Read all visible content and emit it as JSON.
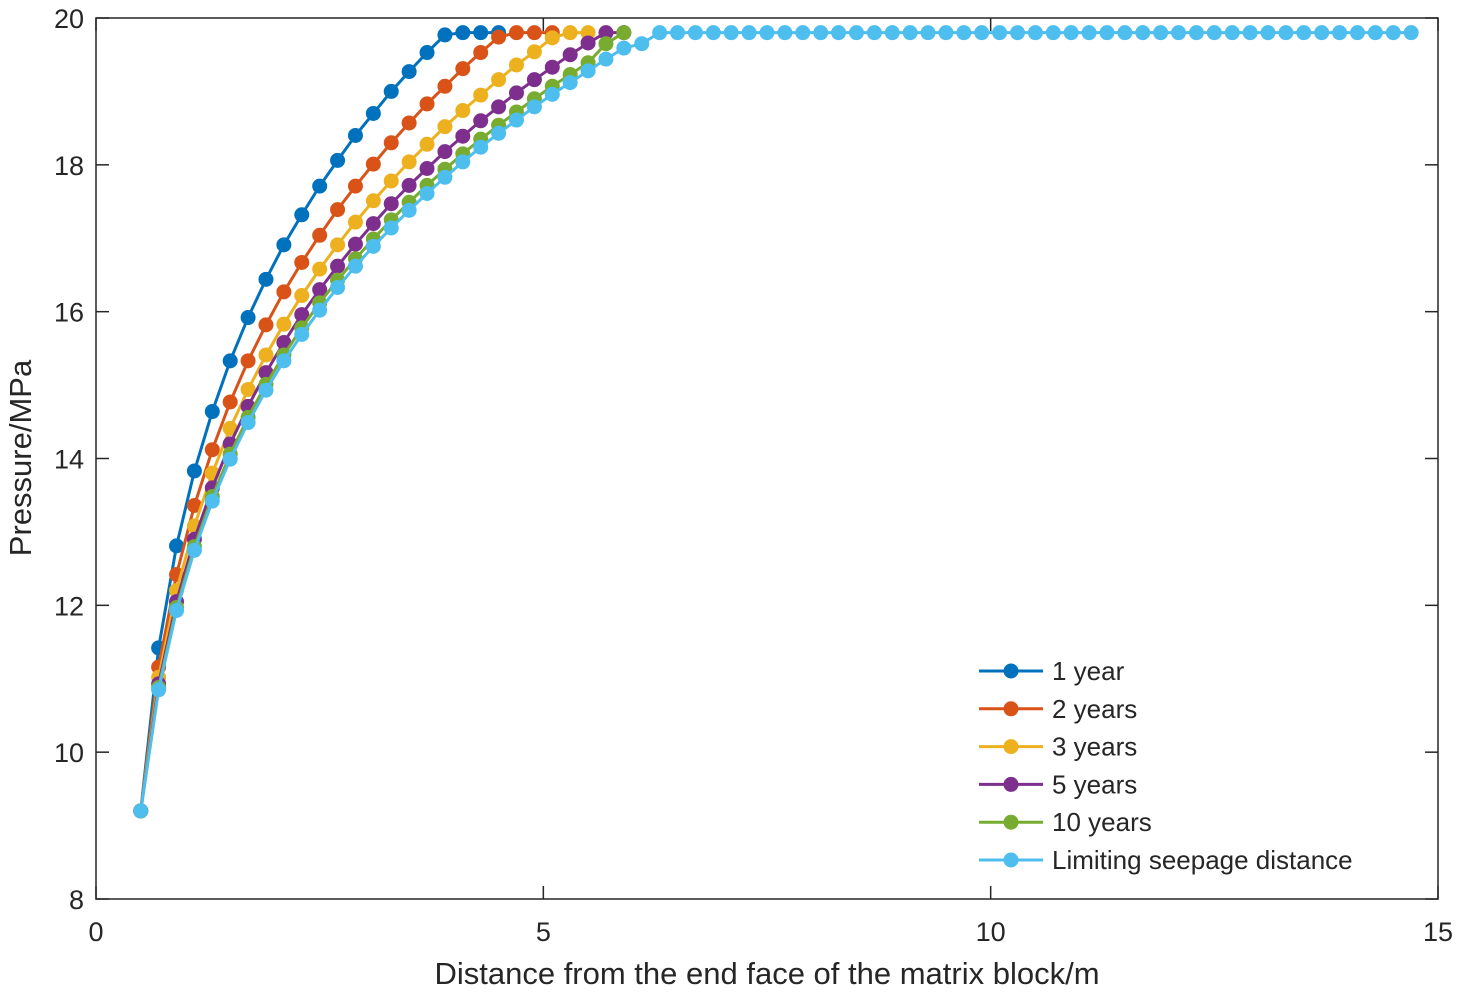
{
  "chart_data": {
    "type": "line",
    "title": "",
    "xlabel": "Distance from the end face of the matrix block/m",
    "ylabel": "Pressure/MPa",
    "xlim": [
      0,
      15
    ],
    "ylim": [
      8,
      20
    ],
    "xticks": [
      0,
      5,
      10,
      15
    ],
    "yticks": [
      8,
      10,
      12,
      14,
      16,
      18,
      20
    ],
    "grid": false,
    "legend_position": "bottom-right",
    "x": [
      0.5,
      0.7,
      0.9,
      1.1,
      1.3,
      1.5,
      1.7,
      1.9,
      2.1,
      2.3,
      2.5,
      2.7,
      2.9,
      3.1,
      3.3,
      3.5,
      3.7,
      3.9,
      4.1,
      4.3,
      4.5,
      4.7,
      4.9,
      5.1,
      5.3,
      5.5,
      5.7,
      5.9,
      6.1,
      6.3,
      6.5,
      6.7,
      6.9,
      7.1,
      7.3,
      7.5,
      7.7,
      7.9,
      8.1,
      8.3,
      8.5,
      8.7,
      8.9,
      9.1,
      9.3,
      9.5,
      9.7,
      9.9,
      10.1,
      10.3,
      10.5,
      10.7,
      10.9,
      11.1,
      11.3,
      11.5,
      11.7,
      11.9,
      12.1,
      12.3,
      12.5,
      12.7,
      12.9,
      13.1,
      13.3,
      13.5,
      13.7,
      13.9,
      14.1,
      14.3,
      14.5,
      14.7
    ],
    "series": [
      {
        "name": "1 year",
        "color": "#0072BD",
        "x": [
          0.5,
          0.7,
          0.9,
          1.1,
          1.3,
          1.5,
          1.7,
          1.9,
          2.1,
          2.3,
          2.5,
          2.7,
          2.9,
          3.1,
          3.3,
          3.5,
          3.7,
          3.9,
          4.1,
          4.3,
          4.5
        ],
        "values": [
          9.2,
          11.42,
          12.81,
          13.83,
          14.64,
          15.33,
          15.92,
          16.44,
          16.91,
          17.32,
          17.71,
          18.06,
          18.4,
          18.7,
          19.0,
          19.27,
          19.53,
          19.77,
          19.8,
          19.8,
          19.8
        ]
      },
      {
        "name": "2 years",
        "color": "#D95319",
        "x": [
          0.5,
          0.7,
          0.9,
          1.1,
          1.3,
          1.5,
          1.7,
          1.9,
          2.1,
          2.3,
          2.5,
          2.7,
          2.9,
          3.1,
          3.3,
          3.5,
          3.7,
          3.9,
          4.1,
          4.3,
          4.5,
          4.7,
          4.9,
          5.1
        ],
        "values": [
          9.2,
          11.16,
          12.42,
          13.36,
          14.12,
          14.77,
          15.33,
          15.82,
          16.27,
          16.67,
          17.04,
          17.39,
          17.71,
          18.01,
          18.3,
          18.57,
          18.83,
          19.07,
          19.31,
          19.53,
          19.74,
          19.8,
          19.8,
          19.8
        ]
      },
      {
        "name": "3 years",
        "color": "#EDB120",
        "x": [
          0.5,
          0.7,
          0.9,
          1.1,
          1.3,
          1.5,
          1.7,
          1.9,
          2.1,
          2.3,
          2.5,
          2.7,
          2.9,
          3.1,
          3.3,
          3.5,
          3.7,
          3.9,
          4.1,
          4.3,
          4.5,
          4.7,
          4.9,
          5.1,
          5.3,
          5.5
        ],
        "values": [
          9.2,
          11.02,
          12.2,
          13.08,
          13.8,
          14.41,
          14.94,
          15.41,
          15.83,
          16.22,
          16.58,
          16.91,
          17.22,
          17.51,
          17.78,
          18.04,
          18.28,
          18.52,
          18.74,
          18.95,
          19.16,
          19.36,
          19.54,
          19.73,
          19.8,
          19.8
        ]
      },
      {
        "name": "5 years",
        "color": "#7E2F8E",
        "x": [
          0.5,
          0.7,
          0.9,
          1.1,
          1.3,
          1.5,
          1.7,
          1.9,
          2.1,
          2.3,
          2.5,
          2.7,
          2.9,
          3.1,
          3.3,
          3.5,
          3.7,
          3.9,
          4.1,
          4.3,
          4.5,
          4.7,
          4.9,
          5.1,
          5.3,
          5.5,
          5.7,
          5.9
        ],
        "values": [
          9.2,
          10.93,
          12.05,
          12.9,
          13.6,
          14.2,
          14.71,
          15.17,
          15.58,
          15.96,
          16.3,
          16.62,
          16.92,
          17.2,
          17.47,
          17.72,
          17.95,
          18.18,
          18.39,
          18.6,
          18.79,
          18.98,
          19.16,
          19.33,
          19.5,
          19.66,
          19.8,
          19.8
        ]
      },
      {
        "name": "10 years",
        "color": "#77AC30",
        "x": [
          0.5,
          0.7,
          0.9,
          1.1,
          1.3,
          1.5,
          1.7,
          1.9,
          2.1,
          2.3,
          2.5,
          2.7,
          2.9,
          3.1,
          3.3,
          3.5,
          3.7,
          3.9,
          4.1,
          4.3,
          4.5,
          4.7,
          4.9,
          5.1,
          5.3,
          5.5,
          5.7,
          5.9
        ],
        "values": [
          9.2,
          10.88,
          11.97,
          12.8,
          13.48,
          14.06,
          14.56,
          15.01,
          15.41,
          15.78,
          16.12,
          16.43,
          16.72,
          16.99,
          17.25,
          17.49,
          17.72,
          17.94,
          18.15,
          18.35,
          18.54,
          18.72,
          18.9,
          19.07,
          19.23,
          19.39,
          19.65,
          19.8
        ]
      },
      {
        "name": "Limiting seepage distance",
        "color": "#4DBEEE",
        "x": [
          0.5,
          0.7,
          0.9,
          1.1,
          1.3,
          1.5,
          1.7,
          1.9,
          2.1,
          2.3,
          2.5,
          2.7,
          2.9,
          3.1,
          3.3,
          3.5,
          3.7,
          3.9,
          4.1,
          4.3,
          4.5,
          4.7,
          4.9,
          5.1,
          5.3,
          5.5,
          5.7,
          5.9,
          6.1,
          6.3,
          6.5,
          6.7,
          6.9,
          7.1,
          7.3,
          7.5,
          7.7,
          7.9,
          8.1,
          8.3,
          8.5,
          8.7,
          8.9,
          9.1,
          9.3,
          9.5,
          9.7,
          9.9,
          10.1,
          10.3,
          10.5,
          10.7,
          10.9,
          11.1,
          11.3,
          11.5,
          11.7,
          11.9,
          12.1,
          12.3,
          12.5,
          12.7,
          12.9,
          13.1,
          13.3,
          13.5,
          13.7,
          13.9,
          14.1,
          14.3,
          14.5,
          14.7
        ],
        "values": [
          9.2,
          10.85,
          11.93,
          12.75,
          13.42,
          13.99,
          14.49,
          14.93,
          15.33,
          15.69,
          16.02,
          16.33,
          16.62,
          16.89,
          17.14,
          17.38,
          17.61,
          17.83,
          18.04,
          18.24,
          18.43,
          18.61,
          18.79,
          18.96,
          19.12,
          19.28,
          19.44,
          19.59,
          19.65,
          19.8,
          19.8,
          19.8,
          19.8,
          19.8,
          19.8,
          19.8,
          19.8,
          19.8,
          19.8,
          19.8,
          19.8,
          19.8,
          19.8,
          19.8,
          19.8,
          19.8,
          19.8,
          19.8,
          19.8,
          19.8,
          19.8,
          19.8,
          19.8,
          19.8,
          19.8,
          19.8,
          19.8,
          19.8,
          19.8,
          19.8,
          19.8,
          19.8,
          19.8,
          19.8,
          19.8,
          19.8,
          19.8,
          19.8,
          19.8,
          19.8,
          19.8,
          19.8
        ]
      }
    ]
  }
}
